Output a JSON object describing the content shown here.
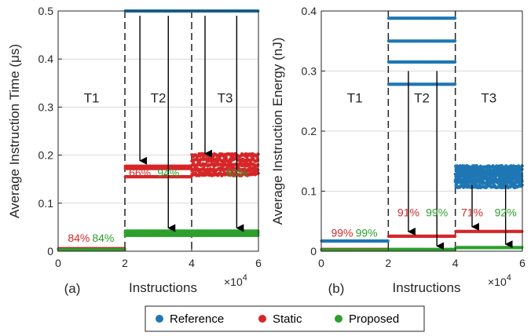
{
  "colors": {
    "reference": "#1f77b4",
    "static": "#d62728",
    "proposed": "#2ca02c",
    "axis": "#262626",
    "grid": "#d9d9d9"
  },
  "legend": {
    "items": [
      {
        "label": "Reference",
        "color": "#1f77b4"
      },
      {
        "label": "Static",
        "color": "#d62728"
      },
      {
        "label": "Proposed",
        "color": "#2ca02c"
      }
    ]
  },
  "chart_data": [
    {
      "type": "scatter",
      "panel_label": "(a)",
      "xlabel": "Instructions",
      "ylabel": "Average Instruction Time (μs)",
      "x_multiplier": "×10",
      "x_multiplier_exp": "4",
      "xlim": [
        0,
        6
      ],
      "ylim": [
        0,
        0.5
      ],
      "xticks": [
        "0",
        "2",
        "4",
        "6"
      ],
      "yticks": [
        "0",
        "0.1",
        "0.2",
        "0.3",
        "0.4",
        "0.5"
      ],
      "grid": true,
      "boundaries": [
        2,
        4
      ],
      "regions": [
        "T1",
        "T2",
        "T3"
      ],
      "series": [
        {
          "name": "Reference",
          "segments": [
            {
              "x": [
                0,
                2
              ],
              "levels": [
                0.005
              ]
            },
            {
              "x": [
                2,
                4
              ],
              "levels": [
                0.5
              ]
            },
            {
              "x": [
                4,
                6
              ],
              "levels": [
                0.5
              ]
            }
          ]
        },
        {
          "name": "Static",
          "segments": [
            {
              "x": [
                0,
                2
              ],
              "levels": [
                0.005
              ]
            },
            {
              "x": [
                2,
                4
              ],
              "levels": [
                0.155,
                0.172,
                0.177
              ]
            },
            {
              "x": [
                4,
                6
              ],
              "levels": [
                0.16,
                0.17,
                0.18,
                0.19,
                0.2
              ]
            }
          ]
        },
        {
          "name": "Proposed",
          "segments": [
            {
              "x": [
                0,
                2
              ],
              "levels": [
                0.003
              ]
            },
            {
              "x": [
                2,
                4
              ],
              "levels": [
                0.033,
                0.038,
                0.042
              ]
            },
            {
              "x": [
                4,
                6
              ],
              "levels": [
                0.033,
                0.038,
                0.042
              ]
            }
          ]
        }
      ],
      "annotations": [
        {
          "text": "84%",
          "series": "Static",
          "x": 0.62,
          "y": 0.02
        },
        {
          "text": "84%",
          "series": "Proposed",
          "x": 1.35,
          "y": 0.02
        },
        {
          "text": "66%",
          "series": "Static",
          "x": 2.45,
          "y": 0.155
        },
        {
          "text": "94%",
          "series": "Proposed",
          "x": 3.3,
          "y": 0.155
        },
        {
          "text": "64%",
          "series": "Static",
          "x": 4.4,
          "y": 0.155
        },
        {
          "text": "93%",
          "series": "Proposed",
          "x": 5.35,
          "y": 0.155
        }
      ],
      "arrows": [
        {
          "x": 2.45,
          "y_from": 0.49,
          "y_to": 0.185
        },
        {
          "x": 3.3,
          "y_from": 0.49,
          "y_to": 0.045
        },
        {
          "x": 4.4,
          "y_from": 0.49,
          "y_to": 0.2
        },
        {
          "x": 5.35,
          "y_from": 0.49,
          "y_to": 0.045
        }
      ]
    },
    {
      "type": "scatter",
      "panel_label": "(b)",
      "xlabel": "Instructions",
      "ylabel": "Average Instruction Energy (nJ)",
      "x_multiplier": "×10",
      "x_multiplier_exp": "4",
      "xlim": [
        0,
        6
      ],
      "ylim": [
        0,
        0.4
      ],
      "xticks": [
        "0",
        "2",
        "4",
        "6"
      ],
      "yticks": [
        "0",
        "0.1",
        "0.2",
        "0.3",
        "0.4"
      ],
      "grid": true,
      "boundaries": [
        2,
        4
      ],
      "regions": [
        "T1",
        "T2",
        "T3"
      ],
      "series": [
        {
          "name": "Reference",
          "segments": [
            {
              "x": [
                0,
                2
              ],
              "levels": [
                0.017
              ]
            },
            {
              "x": [
                2,
                4
              ],
              "levels": [
                0.278,
                0.315,
                0.35,
                0.388
              ]
            },
            {
              "x": [
                4,
                6
              ],
              "levels": [
                0.108,
                0.115,
                0.12,
                0.125,
                0.13,
                0.135,
                0.14
              ]
            }
          ]
        },
        {
          "name": "Static",
          "segments": [
            {
              "x": [
                0,
                2
              ],
              "levels": [
                0.003
              ]
            },
            {
              "x": [
                2,
                4
              ],
              "levels": [
                0.025
              ]
            },
            {
              "x": [
                4,
                6
              ],
              "levels": [
                0.033
              ]
            }
          ]
        },
        {
          "name": "Proposed",
          "segments": [
            {
              "x": [
                0,
                2
              ],
              "levels": [
                0.002
              ]
            },
            {
              "x": [
                2,
                4
              ],
              "levels": [
                0.003
              ]
            },
            {
              "x": [
                4,
                6
              ],
              "levels": [
                0.006
              ]
            }
          ]
        }
      ],
      "annotations": [
        {
          "text": "99%",
          "series": "Static",
          "x": 0.62,
          "y": 0.024
        },
        {
          "text": "99%",
          "series": "Proposed",
          "x": 1.35,
          "y": 0.024
        },
        {
          "text": "91%",
          "series": "Static",
          "x": 2.6,
          "y": 0.058
        },
        {
          "text": "99%",
          "series": "Proposed",
          "x": 3.45,
          "y": 0.058
        },
        {
          "text": "71%",
          "series": "Static",
          "x": 4.5,
          "y": 0.058
        },
        {
          "text": "92%",
          "series": "Proposed",
          "x": 5.5,
          "y": 0.058
        }
      ],
      "arrows": [
        {
          "x": 2.6,
          "y_from": 0.3,
          "y_to": 0.03
        },
        {
          "x": 3.45,
          "y_from": 0.3,
          "y_to": 0.006
        },
        {
          "x": 4.5,
          "y_from": 0.11,
          "y_to": 0.038
        },
        {
          "x": 5.5,
          "y_from": 0.11,
          "y_to": 0.009
        }
      ]
    }
  ]
}
